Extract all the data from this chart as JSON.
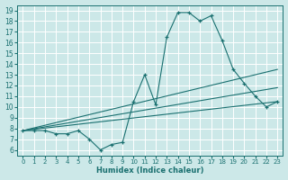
{
  "title": "",
  "xlabel": "Humidex (Indice chaleur)",
  "background_color": "#cce8e8",
  "grid_color": "#ffffff",
  "line_color": "#1a7070",
  "xlim": [
    -0.5,
    23.5
  ],
  "ylim": [
    5.5,
    19.5
  ],
  "xtick_labels": [
    "0",
    "1",
    "2",
    "3",
    "4",
    "5",
    "6",
    "7",
    "8",
    "9",
    "10",
    "11",
    "12",
    "13",
    "14",
    "15",
    "16",
    "17",
    "18",
    "19",
    "20",
    "21",
    "22",
    "23"
  ],
  "xtick_vals": [
    0,
    1,
    2,
    3,
    4,
    5,
    6,
    7,
    8,
    9,
    10,
    11,
    12,
    13,
    14,
    15,
    16,
    17,
    18,
    19,
    20,
    21,
    22,
    23
  ],
  "ytick_vals": [
    6,
    7,
    8,
    9,
    10,
    11,
    12,
    13,
    14,
    15,
    16,
    17,
    18,
    19
  ],
  "series1_x": [
    0,
    1,
    2,
    3,
    4,
    5,
    6,
    7,
    8,
    9,
    10,
    11,
    12,
    13,
    14,
    15,
    16,
    17,
    18,
    19,
    20,
    21,
    22,
    23
  ],
  "series1_y": [
    7.8,
    7.8,
    7.8,
    7.5,
    7.5,
    7.8,
    7.0,
    6.0,
    6.5,
    6.7,
    10.5,
    13.0,
    10.2,
    16.5,
    18.8,
    18.8,
    18.0,
    18.5,
    16.2,
    13.5,
    12.2,
    11.0,
    10.0,
    10.5
  ],
  "trend1_x": [
    0,
    23
  ],
  "trend1_y": [
    7.8,
    13.5
  ],
  "trend2_x": [
    0,
    23
  ],
  "trend2_y": [
    7.8,
    11.8
  ],
  "trend3_x": [
    0,
    23
  ],
  "trend3_y": [
    7.8,
    10.5
  ]
}
